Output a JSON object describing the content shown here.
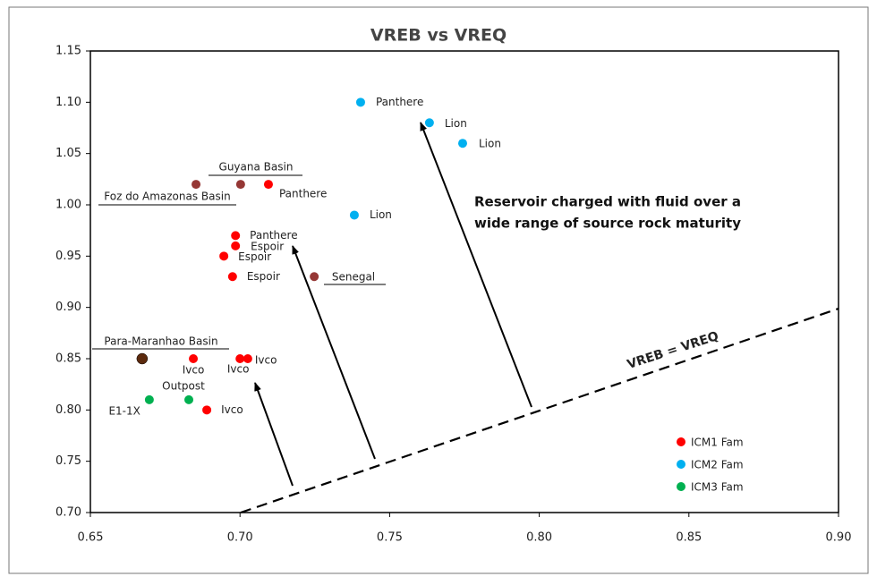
{
  "chart_data": {
    "type": "scatter",
    "title": "VREB vs VREQ",
    "xlim": [
      0.65,
      0.9
    ],
    "xticks": [
      0.65,
      {
        "value": 0.7,
        "label": "0.70"
      },
      0.75,
      {
        "value": 0.8,
        "label": "0.80"
      },
      0.85,
      {
        "value": 0.9,
        "label": "0.90"
      }
    ],
    "ylim": [
      0.7,
      1.15
    ],
    "yticks": [
      {
        "value": 0.7,
        "label": "0.70"
      },
      0.75,
      {
        "value": 0.8,
        "label": "0.80"
      },
      0.85,
      {
        "value": 0.9,
        "label": "0.90"
      },
      0.95,
      {
        "value": 1.0,
        "label": "1.00"
      },
      1.05,
      {
        "value": 1.1,
        "label": "1.10"
      },
      1.15
    ],
    "legend": "bottom-right",
    "series": [
      {
        "name": "ICM1 Fam",
        "color": "#ff0000",
        "x": [
          0.7095,
          0.6985,
          0.6985,
          0.6946,
          0.6975,
          0.6844,
          0.7,
          0.7026,
          0.6889
        ],
        "values": [
          1.02,
          0.97,
          0.96,
          0.95,
          0.93,
          0.85,
          0.85,
          0.85,
          0.8
        ],
        "labels": [
          "Panthere",
          "Panthere",
          "Espoir",
          "Espoir",
          "Espoir",
          "Ivco",
          "Ivco",
          "Ivco",
          "Ivco"
        ]
      },
      {
        "name": "ICM2 Fam",
        "color": "#00b0f0",
        "x": [
          0.7403,
          0.7633,
          0.7744,
          0.7382
        ],
        "values": [
          1.1,
          1.08,
          1.06,
          0.99
        ],
        "labels": [
          "Panthere",
          "Lion",
          "Lion",
          "Lion"
        ]
      },
      {
        "name": "ICM3 Fam",
        "color": "#00b050",
        "x": [
          0.6697,
          0.6829
        ],
        "values": [
          0.81,
          0.81
        ],
        "labels": [
          "E1-1X",
          "Outpost"
        ]
      },
      {
        "color": "#953735",
        "x": [
          0.6853,
          0.7002,
          0.7248
        ],
        "values": [
          1.02,
          1.02,
          0.93
        ]
      },
      {
        "color": "#5c2a0e",
        "x": [
          0.6673
        ],
        "values": [
          0.85
        ]
      }
    ],
    "annotations": [
      "Guyana Basin",
      "Foz do Amazonas Basin",
      "Senegal",
      "Para-Maranhao Basin",
      "VREB = VREQ",
      "Reservoir charged with fluid over a",
      "wide range of source rock maturity"
    ]
  }
}
